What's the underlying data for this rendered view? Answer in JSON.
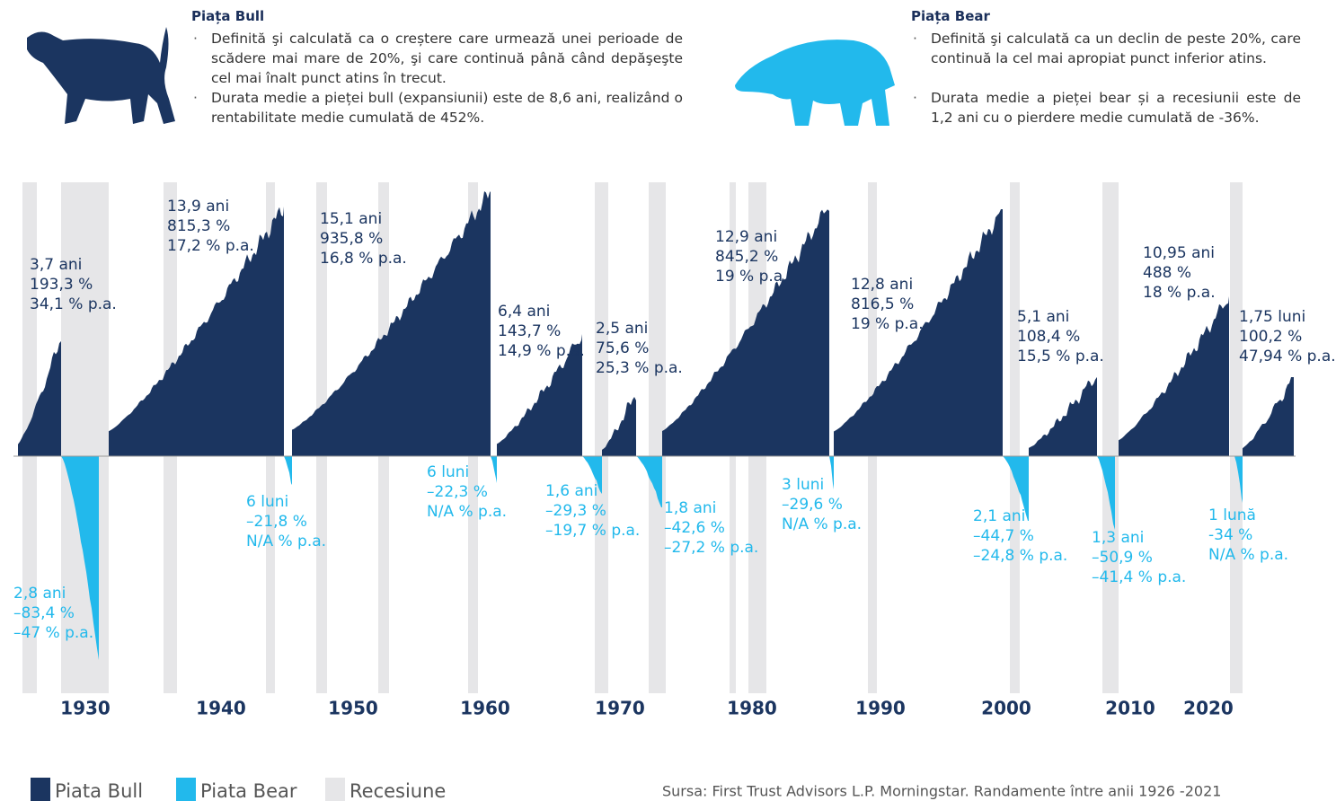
{
  "header": {
    "bull": {
      "title": "Piața Bull",
      "bullets": [
        "Definită şi calculată ca o creștere care urmează unei perioade de scădere mai mare de 20%, şi care continuă până când depăşeşte cel mai înalt punct atins în trecut.",
        "Durata medie a pieței bull (expansiunii) este de 8,6 ani, realizând o rentabilitate medie cumulată de 452%."
      ]
    },
    "bear": {
      "title": "Piața Bear",
      "bullets": [
        "Definită şi calculată ca un declin de peste 20%, care continuă la cel mai apropiat punct inferior atins.",
        "Durata medie a pieței bear și a recesiunii este de 1,2 ani cu o pierdere medie cumulată de -36%."
      ]
    }
  },
  "cycles": {
    "bull": [
      [
        "3,7 ani",
        "193,3 %",
        "34,1 % p.a."
      ],
      [
        "13,9 ani",
        "815,3 %",
        "17,2 % p.a."
      ],
      [
        "15,1 ani",
        "935,8 %",
        "16,8 % p.a."
      ],
      [
        "6,4 ani",
        "143,7 %",
        "14,9 % p.a."
      ],
      [
        "2,5 ani",
        "75,6 %",
        "25,3 % p.a."
      ],
      [
        "12,9 ani",
        "845,2 %",
        "19 % p.a."
      ],
      [
        "12,8 ani",
        "816,5 %",
        "19 % p.a."
      ],
      [
        "5,1 ani",
        "108,4 %",
        "15,5 % p.a."
      ],
      [
        "10,95 ani",
        "488 %",
        "18 % p.a."
      ],
      [
        "1,75 luni",
        "100,2 %",
        "47,94 % p.a."
      ]
    ],
    "bear": [
      [
        "2,8 ani",
        "–83,4 %",
        "–47 % p.a."
      ],
      [
        "6 luni",
        "–21,8 %",
        "N/A % p.a."
      ],
      [
        "6 luni",
        "–22,3 %",
        "N/A % p.a."
      ],
      [
        "1,6 ani",
        "–29,3 %",
        "–19,7 % p.a."
      ],
      [
        "1,8 ani",
        "–42,6 %",
        "–27,2 % p.a."
      ],
      [
        "3 luni",
        "–29,6 %",
        "N/A % p.a."
      ],
      [
        "2,1 ani",
        "–44,7 %",
        "–24,8 % p.a."
      ],
      [
        "1,3 ani",
        "–50,9 %",
        "–41,4 % p.a."
      ],
      [
        "1 lună",
        "-34 %",
        "N/A % p.a."
      ]
    ]
  },
  "decades": [
    "1930",
    "1940",
    "1950",
    "1960",
    "1970",
    "1980",
    "1990",
    "2000",
    "2010",
    "2020"
  ],
  "legend": [
    "Piata Bull",
    "Piata Bear",
    "Recesiune"
  ],
  "source": "Sursa: First Trust Advisors L.P. Morningstar. Randamente între anii 1926 -2021"
}
